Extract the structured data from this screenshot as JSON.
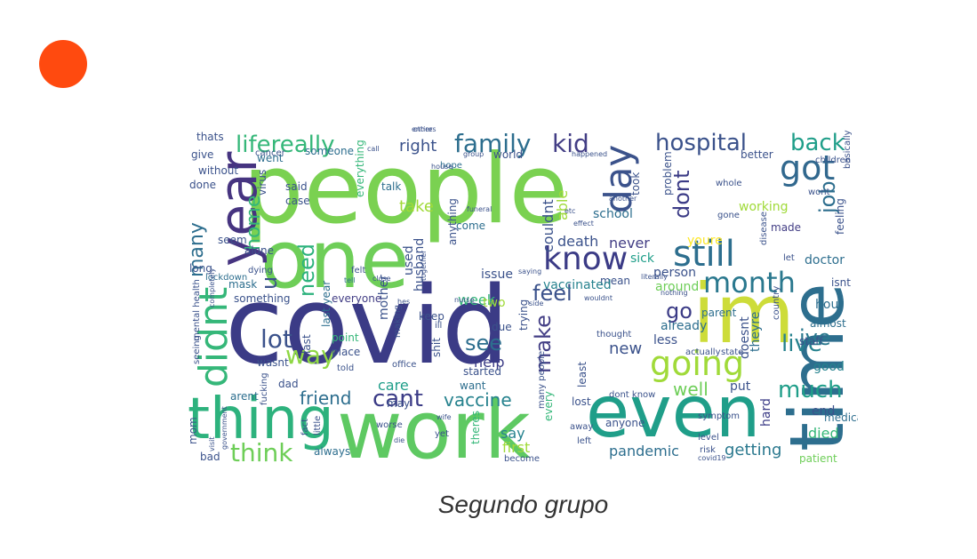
{
  "colors": {
    "accent": "#ff4a0f",
    "caption": "#333333",
    "palette": [
      "#3b3b86",
      "#463480",
      "#2d6e8e",
      "#26828e",
      "#1f9e89",
      "#35b779",
      "#6ece58",
      "#a0da39",
      "#cddc39",
      "#fde725"
    ]
  },
  "caption": "Segundo grupo",
  "cloud_words": [
    "people",
    "covid",
    "one",
    "work",
    "time",
    "im",
    "even",
    "thing",
    "year",
    "didnt",
    "going",
    "know",
    "still",
    "day",
    "got",
    "month",
    "family",
    "kid",
    "hospital",
    "back",
    "lifereally",
    "right",
    "think",
    "lot",
    "way",
    "cant",
    "see",
    "feel",
    "make",
    "much",
    "live",
    "job",
    "dont",
    "ive",
    "need",
    "u",
    "home",
    "many",
    "go",
    "well",
    "vaccine",
    "friend",
    "care",
    "help",
    "new",
    "say",
    "pandemic",
    "getting",
    "died",
    "first",
    "take",
    "couldnt",
    "able",
    "never",
    "death",
    "week",
    "school",
    "working",
    "made",
    "doctor",
    "isnt",
    "hour",
    "good",
    "end",
    "hard",
    "put",
    "less",
    "already",
    "doesnt",
    "theyre",
    "person",
    "around",
    "youre",
    "sick",
    "parent",
    "mean",
    "vaccinated",
    "issue",
    "used",
    "husband",
    "mother",
    "everyone",
    "something",
    "mask",
    "alone",
    "without",
    "virus",
    "said",
    "case",
    "talk",
    "last",
    "come",
    "last year",
    "point",
    "place",
    "wasnt",
    "dad",
    "arent",
    "mom",
    "bad",
    "always",
    "due",
    "trying",
    "least",
    "keep",
    "anything",
    "want",
    "started",
    "lost",
    "anyone",
    "patient",
    "staff",
    "almost",
    "medical",
    "feeling",
    "thats",
    "give",
    "done",
    "seem",
    "long",
    "lockdown",
    "went",
    "someone",
    "everything",
    "hope",
    "world",
    "took",
    "problem",
    "whole",
    "better",
    "wont",
    "gone",
    "children",
    "basically",
    "dying",
    "felt",
    "tell",
    "together",
    "saying",
    "wouldnt",
    "nothing",
    "effect",
    "etc",
    "another",
    "happened",
    "group",
    "call",
    "entire",
    "funeral",
    "house",
    "thought",
    "dont know",
    "actually",
    "state",
    "country",
    "disease",
    "let",
    "risk",
    "symptom",
    "covid19",
    "become",
    "left",
    "away",
    "yet",
    "theres",
    "every",
    "shit",
    "ill",
    "making",
    "hes",
    "told",
    "office",
    "may",
    "fact",
    "little",
    "visit",
    "government",
    "fucking",
    "seeing",
    "mental health",
    "completely",
    "nurse",
    "worse",
    "side",
    "many people",
    "literally",
    "others",
    "wife",
    "close",
    "cancer",
    "level",
    "die",
    "two",
    "social",
    "normal",
    "enough"
  ]
}
